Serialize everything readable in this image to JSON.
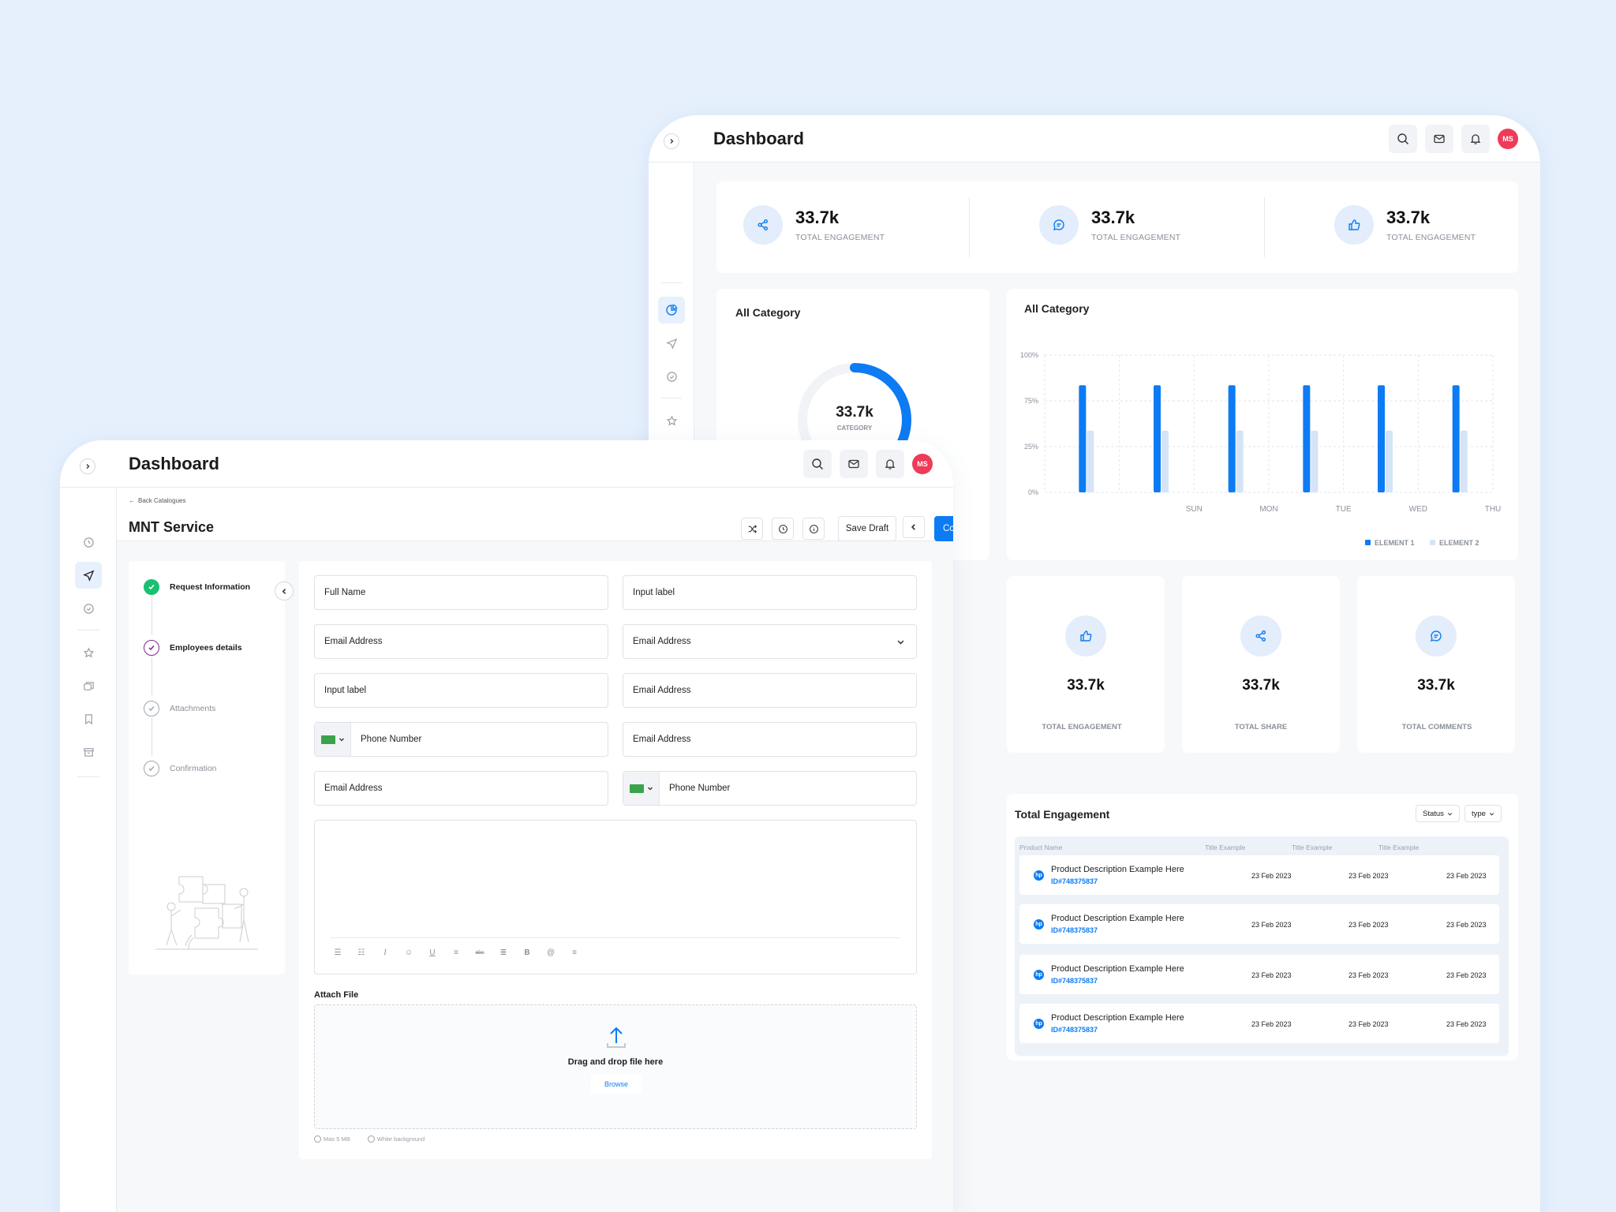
{
  "back": {
    "title": "Dashboard",
    "avatar": "MS",
    "stats": [
      {
        "value": "33.7k",
        "label": "TOTAL ENGAGEMENT",
        "icon": "share-icon"
      },
      {
        "value": "33.7k",
        "label": "TOTAL ENGAGEMENT",
        "icon": "comment-icon"
      },
      {
        "value": "33.7k",
        "label": "TOTAL ENGAGEMENT",
        "icon": "thumbs-up-icon"
      }
    ],
    "donut": {
      "title": "All Category",
      "value": "33.7k",
      "label": "CATEGORY",
      "fraction": 0.35
    },
    "bar_title": "All Category",
    "minis": [
      {
        "value": "33.7k",
        "label": "TOTAL ENGAGEMENT"
      },
      {
        "value": "33.7k",
        "label": "TOTAL SHARE"
      },
      {
        "value": "33.7k",
        "label": "TOTAL COMMENTS"
      }
    ],
    "table": {
      "title": "Total Engagement",
      "filter_status": "Status",
      "filter_type": "type",
      "headers": [
        "Product Name",
        "Title Example",
        "Title Example",
        "Title Example"
      ],
      "rows": [
        {
          "name": "Product Description Example Here",
          "id": "ID#748375837",
          "d1": "23 Feb 2023",
          "d2": "23 Feb 2023",
          "d3": "23 Feb 2023"
        },
        {
          "name": "Product Description Example Here",
          "id": "ID#748375837",
          "d1": "23 Feb 2023",
          "d2": "23 Feb 2023",
          "d3": "23 Feb 2023"
        },
        {
          "name": "Product Description Example Here",
          "id": "ID#748375837",
          "d1": "23 Feb 2023",
          "d2": "23 Feb 2023",
          "d3": "23 Feb 2023"
        },
        {
          "name": "Product Description Example Here",
          "id": "ID#748375837",
          "d1": "23 Feb 2023",
          "d2": "23 Feb 2023",
          "d3": "23 Feb 2023"
        }
      ]
    }
  },
  "chart_data": {
    "type": "bar",
    "title": "All Category",
    "categories": [
      "",
      "SUN",
      "MON",
      "TUE",
      "WED",
      "THU"
    ],
    "y_ticks": [
      "100%",
      "75%",
      "25%",
      "0%"
    ],
    "series": [
      {
        "name": "ELEMENT 1",
        "color": "#0d7bf3",
        "values": [
          78,
          78,
          78,
          78,
          78,
          78
        ]
      },
      {
        "name": "ELEMENT 2",
        "color": "#d6e4f8",
        "values": [
          45,
          45,
          45,
          45,
          45,
          45
        ]
      }
    ],
    "legend": "bottom-right",
    "grid": true
  },
  "front": {
    "title": "Dashboard",
    "avatar": "MS",
    "back_link": "Back Catalogues",
    "page_title": "MNT Service",
    "save_draft": "Save Draft",
    "continue": "Continue",
    "steps": [
      {
        "label": "Request Information",
        "state": "done"
      },
      {
        "label": "Employees details",
        "state": "active"
      },
      {
        "label": "Attachments",
        "state": "todo"
      },
      {
        "label": "Confirmation",
        "state": "todo"
      }
    ],
    "fields": {
      "full_name": "Full Name",
      "input_label_1": "Input label",
      "email_1": "Email Address",
      "email_dropdown": "Email Address",
      "input_label_2": "Input label",
      "email_2": "Email Address",
      "phone_1": "Phone  Number",
      "email_3": "Email Address",
      "email_4": "Email Address",
      "phone_2": "Phone  Number"
    },
    "attach_label": "Attach File",
    "drop_text": "Drag and drop file here",
    "browse": "Browse",
    "hint_size": "Max 5 MB",
    "hint_bg": "White background"
  },
  "colors": {
    "accent": "#0d7bf3",
    "success": "#1bbf72",
    "active_step": "#7b2b8c",
    "avatar": "#ee3b57"
  }
}
